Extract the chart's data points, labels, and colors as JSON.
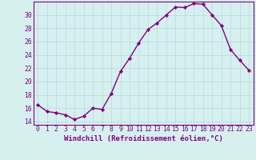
{
  "x": [
    0,
    1,
    2,
    3,
    4,
    5,
    6,
    7,
    8,
    9,
    10,
    11,
    12,
    13,
    14,
    15,
    16,
    17,
    18,
    19,
    20,
    21,
    22,
    23
  ],
  "y": [
    16.5,
    15.5,
    15.3,
    15.0,
    14.3,
    14.8,
    16.0,
    15.8,
    18.2,
    21.5,
    23.5,
    25.8,
    27.8,
    28.8,
    30.0,
    31.2,
    31.1,
    31.7,
    31.6,
    30.0,
    28.4,
    24.8,
    23.2,
    21.7
  ],
  "line_color": "#800080",
  "marker": "D",
  "marker_size": 2.2,
  "linewidth": 1.0,
  "xlabel": "Windchill (Refroidissement éolien,°C)",
  "xlabel_fontsize": 6.5,
  "ylim": [
    13.5,
    32
  ],
  "xlim": [
    -0.5,
    23.5
  ],
  "yticks": [
    14,
    16,
    18,
    20,
    22,
    24,
    26,
    28,
    30
  ],
  "xticks": [
    0,
    1,
    2,
    3,
    4,
    5,
    6,
    7,
    8,
    9,
    10,
    11,
    12,
    13,
    14,
    15,
    16,
    17,
    18,
    19,
    20,
    21,
    22,
    23
  ],
  "background_color": "#d6f0f0",
  "grid_color": "#b8d8d8",
  "tick_label_color": "#800080",
  "tick_label_fontsize": 5.8,
  "spine_color": "#800080"
}
